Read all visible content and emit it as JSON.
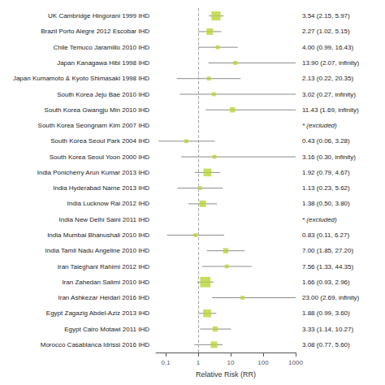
{
  "chart_data": {
    "type": "forest",
    "x_label": "Relative Risk (RR)",
    "categories": [
      "UK Cambridge Hingorani 1999 IHD",
      "Brazil Porto Alegre 2012 Escobar IHD",
      "Chile Temuco Jaramillo 2010 IHD",
      "Japan Kanagawa Hibi 1998 IHD",
      "Japan Kumamoto & Kyoto Shimasaki 1998 IHD",
      "South Korea Jeju Bae 2010 IHD",
      "South Korea Gwangju Min 2010 IHD",
      "South Korea Seongnam Kim 2007 IHD",
      "South Korea Seoul Park 2004 IHD",
      "South Korea Seoul Yoon 2000 IHD",
      "India Ponicherry Arun Kumar 2013 IHD",
      "India Hyderabad Narne 2013 IHD",
      "India Lucknow Rai 2012 IHD",
      "India New Delhi Saini 2011 IHD",
      "India Mumbai Bhanushali 2010 IHD",
      "India Tamil Nadu Angeline 2010 IHD",
      "Iran Taleghani Rahimi 2012 IHD",
      "Iran Zahedan Salimi 2010 IHD",
      "Iran Ashkezar Heidari 2016 IHD",
      "Egypt Zagazig Abdel-Aziz 2013 IHD",
      "Egypt Cairo Motawi 2011 IHD",
      "Morocco Casablanca Idrissi 2016 IHD"
    ],
    "values": [
      3.54,
      2.27,
      4.0,
      13.9,
      2.13,
      3.02,
      11.43,
      null,
      0.43,
      3.16,
      1.92,
      1.13,
      1.38,
      null,
      0.83,
      7.0,
      7.56,
      1.66,
      23.0,
      1.88,
      3.33,
      3.08
    ],
    "ci_lo": [
      2.15,
      1.02,
      0.99,
      2.07,
      0.22,
      0.27,
      1.69,
      null,
      0.06,
      0.3,
      0.79,
      0.23,
      0.5,
      null,
      0.11,
      1.85,
      1.33,
      0.93,
      2.69,
      0.99,
      1.14,
      0.77
    ],
    "ci_hi": [
      5.97,
      5.15,
      16.43,
      999,
      20.35,
      999,
      999,
      null,
      3.28,
      999,
      4.67,
      5.62,
      3.8,
      null,
      6.27,
      27.2,
      44.35,
      2.96,
      999,
      3.6,
      10.27,
      5.6
    ],
    "sizes": [
      7,
      5,
      3,
      3,
      3,
      3,
      4,
      0,
      3,
      3,
      6,
      3,
      5,
      0,
      3,
      4,
      3,
      8,
      3,
      6,
      4,
      5
    ],
    "value_labels": [
      "3.54 (2.15, 5.97)",
      "2.27 (1.02, 5.15)",
      "4.00 (0.99, 16.43)",
      "13.90 (2.07, infinity)",
      "2.13 (0.22, 20.35)",
      "3.02 (0.27, infinity)",
      "11.43 (1.69, infinity)",
      "* (excluded)",
      "0.43 (0.06, 3.28)",
      "3.16 (0.30, infinity)",
      "1.92 (0.79, 4.67)",
      "1.13 (0.23, 5.62)",
      "1.38 (0.50, 3.80)",
      "* (excluded)",
      "0.83 (0.11, 6.27)",
      "7.00 (1.85, 27.20)",
      "7.56 (1.33, 44.35)",
      "1.66 (0.93, 2.96)",
      "23.00 (2.69, infinity)",
      "1.88 (0.99, 3.60)",
      "3.33 (1.14, 10.27)",
      "3.08 (0.77, 5.60)"
    ],
    "xlim": [
      0.05,
      1000
    ],
    "xticks": [
      0.1,
      1,
      10,
      100,
      1000
    ],
    "log": "x",
    "ref_line": 1,
    "grid": false
  }
}
